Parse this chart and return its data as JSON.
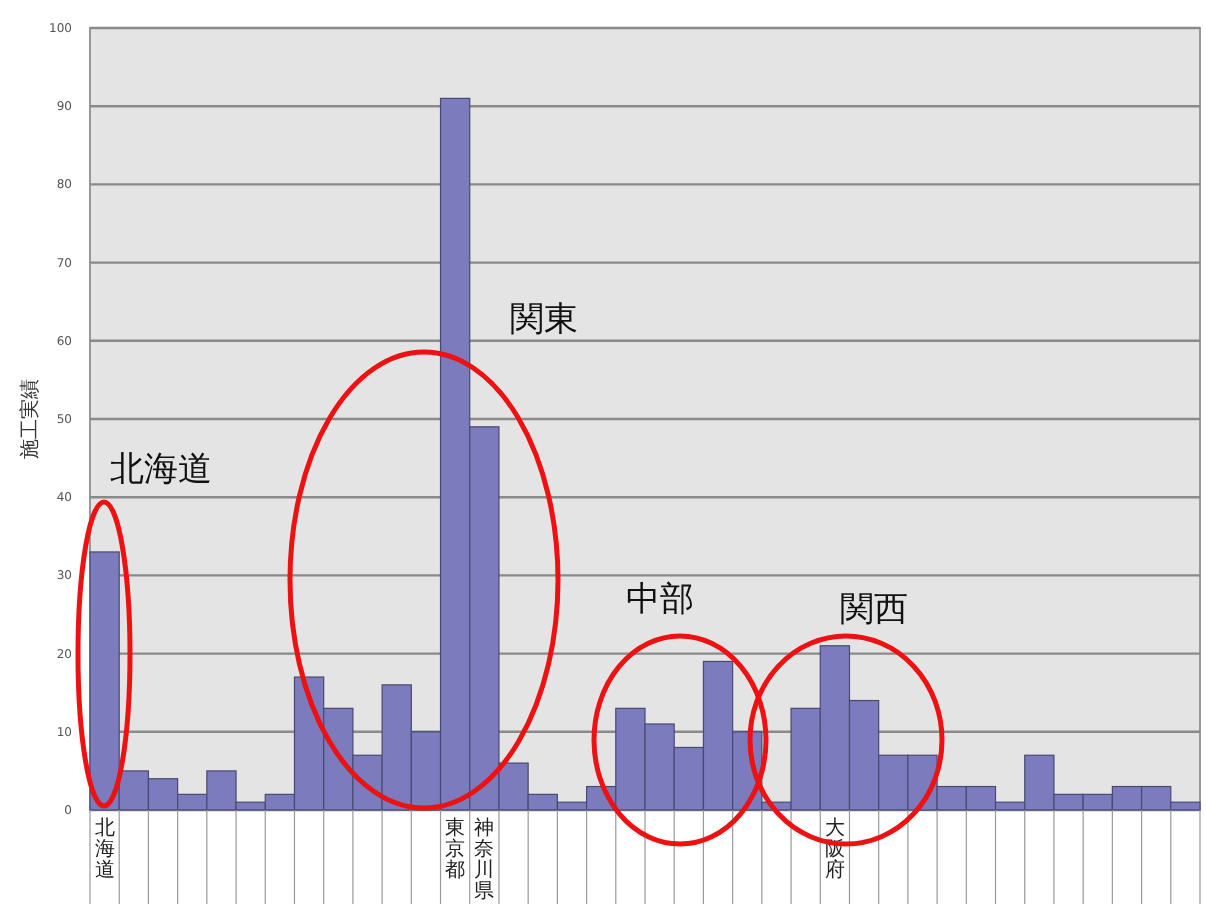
{
  "chart_data": {
    "type": "bar",
    "ylabel": "施工実績",
    "categories": [
      "北海道",
      null,
      null,
      null,
      null,
      null,
      null,
      null,
      null,
      null,
      null,
      null,
      "東京都",
      "神奈川県",
      null,
      null,
      null,
      null,
      null,
      null,
      null,
      null,
      null,
      null,
      null,
      "大阪府",
      null,
      null,
      null,
      null,
      null,
      null,
      null,
      null,
      null,
      null,
      null,
      null
    ],
    "values": [
      33,
      5,
      4,
      2,
      5,
      1,
      2,
      17,
      13,
      7,
      16,
      10,
      91,
      49,
      6,
      2,
      1,
      3,
      13,
      11,
      8,
      19,
      10,
      1,
      13,
      21,
      14,
      7,
      7,
      3,
      3,
      1,
      7,
      2,
      2,
      3,
      3,
      1
    ],
    "color": "#7b7bbd",
    "ylim": [
      0,
      100
    ],
    "yticks": [
      0,
      10,
      20,
      30,
      40,
      50,
      60,
      70,
      80,
      90,
      100
    ],
    "grid": "y",
    "annotations": [
      "北海道",
      "関東",
      "中部",
      "関西"
    ]
  }
}
